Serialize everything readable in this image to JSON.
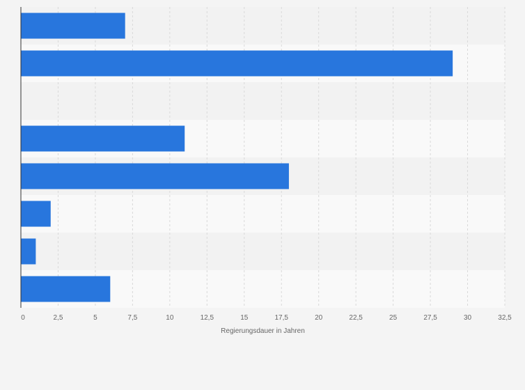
{
  "chart_data": {
    "type": "bar",
    "orientation": "horizontal",
    "categories": [
      "",
      "",
      "",
      "",
      "",
      "",
      "",
      ""
    ],
    "values": [
      7,
      29,
      0,
      11,
      18,
      2,
      1,
      6
    ],
    "title": "",
    "xlabel": "Regierungsdauer in Jahren",
    "ylabel": "",
    "xlim": [
      0,
      32.5
    ],
    "xticks": [
      0,
      2.5,
      5,
      7.5,
      10,
      12.5,
      15,
      17.5,
      20,
      22.5,
      25,
      27.5,
      30,
      32.5
    ],
    "xtick_labels": [
      "0",
      "2,5",
      "5",
      "7,5",
      "10",
      "12,5",
      "15",
      "17,5",
      "20",
      "22,5",
      "25",
      "27,5",
      "30",
      "32,5"
    ],
    "grid": true,
    "colors": {
      "bar": "#2876dd",
      "band_light": "#f9f9f9",
      "band_dark": "#f2f2f2",
      "grid": "#d9d9d9",
      "axis": "#333333",
      "background": "#f4f4f4"
    }
  }
}
